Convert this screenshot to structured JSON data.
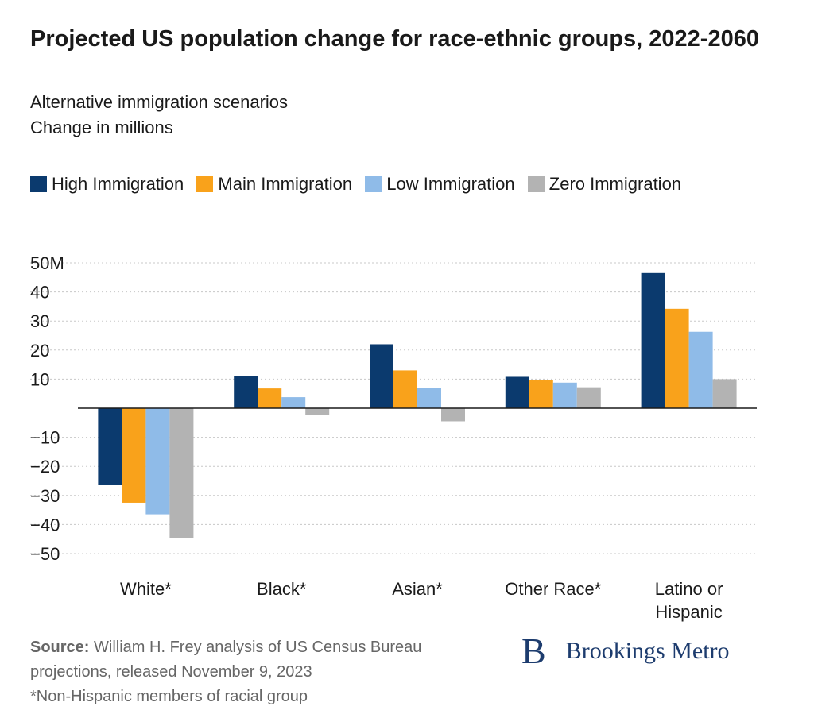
{
  "chart_data": {
    "type": "bar",
    "title": "Projected US population change for race-ethnic groups, 2022-2060",
    "subtitle": [
      "Alternative immigration scenarios",
      "Change in millions"
    ],
    "categories": [
      "White*",
      "Black*",
      "Asian*",
      "Other Race*",
      "Latino or Hispanic"
    ],
    "series": [
      {
        "name": "High Immigration",
        "color": "#0b3a6e",
        "values": [
          -26.5,
          11,
          22,
          10.8,
          46.5
        ]
      },
      {
        "name": "Main Immigration",
        "color": "#f9a21b",
        "values": [
          -32.5,
          6.8,
          13,
          9.8,
          34.2
        ]
      },
      {
        "name": "Low Immigration",
        "color": "#8fbbe8",
        "values": [
          -36.5,
          3.8,
          7,
          8.8,
          26.3
        ]
      },
      {
        "name": "Zero Immigration",
        "color": "#b3b3b3",
        "values": [
          -44.8,
          -2.2,
          -4.5,
          7.2,
          10
        ]
      }
    ],
    "ylim": [
      -50,
      50
    ],
    "yticks": [
      -50,
      -40,
      -30,
      -20,
      -10,
      10,
      20,
      30,
      40,
      50
    ],
    "ytick_labels": [
      "−50",
      "−40",
      "−30",
      "−20",
      "−10",
      "10",
      "20",
      "30",
      "40",
      "50M"
    ],
    "grid": true,
    "legend_position": "top-left"
  },
  "footer": {
    "source_label": "Source:",
    "source_text": "William H. Frey analysis of US Census Bureau projections, released November 9, 2023",
    "note": "*Non-Hispanic members of racial group"
  },
  "logo": {
    "mark": "B",
    "text": "Brookings Metro"
  }
}
